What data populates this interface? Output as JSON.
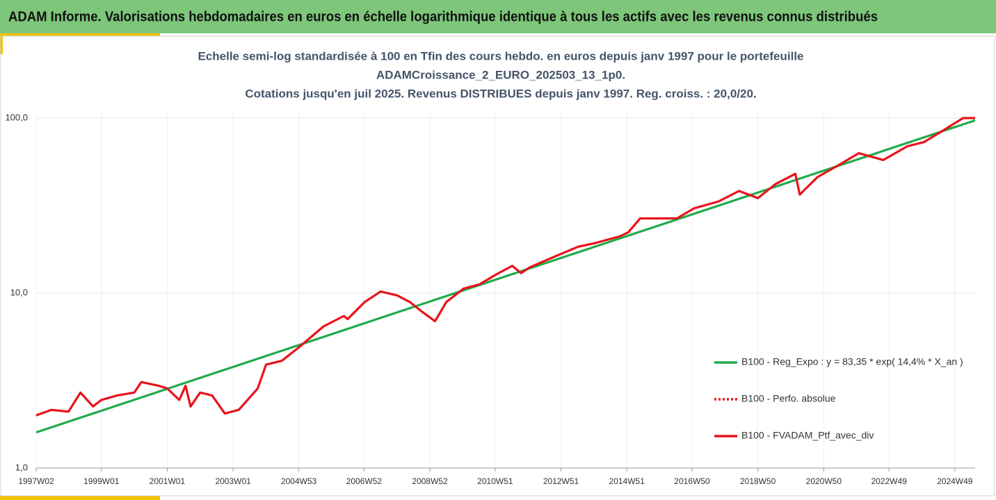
{
  "header": {
    "title": "ADAM Informe. Valorisations hebdomadaires en euros en échelle logarithmique identique à tous les actifs avec les revenus connus distribués"
  },
  "chart_data": {
    "type": "line",
    "title": [
      "Echelle semi-log standardisée à 100 en Tfin des cours hebdo.  en euros depuis janv 1997 pour le portefeuille",
      "ADAMCroissance_2_EURO_202503_13_1p0.",
      "Cotations  jusqu'en juil 2025. Revenus DISTRIBUES depuis janv 1997. Reg. croiss. : 20,0/20."
    ],
    "log_scale": true,
    "grid": true,
    "legend": "right",
    "ylim": [
      1,
      100
    ],
    "yticks": [
      {
        "value": 1,
        "label": "1,0"
      },
      {
        "value": 10,
        "label": "10,0"
      },
      {
        "value": 100,
        "label": "100,0"
      }
    ],
    "xticks": [
      "1997W02",
      "1999W01",
      "2001W01",
      "2003W01",
      "2004W53",
      "2006W52",
      "2008W52",
      "2010W51",
      "2012W51",
      "2014W51",
      "2016W50",
      "2018W50",
      "2020W50",
      "2022W49",
      "2024W49"
    ],
    "series": [
      {
        "name": "B100 - Reg_Expo : y = 83,35 * exp( 14,4% *  X_an )",
        "color": "#1faa4b",
        "style": "solid",
        "x": [
          "1997W02",
          "2025W29"
        ],
        "values": [
          1.6,
          97
        ]
      },
      {
        "name": "B100 - Perfo. absolue",
        "color": "#e8141b",
        "style": "dotted",
        "x": [
          "1997W02",
          "1997W26",
          "1998W01",
          "1998W20",
          "1998W40",
          "1999W01",
          "1999W26",
          "2000W01",
          "2000W12",
          "2000W40",
          "2001W01",
          "2001W20",
          "2001W30",
          "2001W38",
          "2002W01",
          "2002W20",
          "2002W40",
          "2003W10",
          "2003W40",
          "2004W01",
          "2004W26",
          "2005W01",
          "2005W40",
          "2006W20",
          "2006W26",
          "2007W01",
          "2007W26",
          "2007W52",
          "2008W20",
          "2008W40",
          "2009W08",
          "2009W26",
          "2010W01",
          "2010W26",
          "2011W01",
          "2011W26",
          "2011W40",
          "2012W01",
          "2012W40",
          "2013W26",
          "2014W01",
          "2014W40",
          "2015W01",
          "2015W20",
          "2015W40",
          "2016W26",
          "2017W01",
          "2017W40",
          "2018W20",
          "2018W50",
          "2019W26",
          "2020W05",
          "2020W12",
          "2020W40",
          "2021W26",
          "2022W01",
          "2022W40",
          "2023W26",
          "2023W52",
          "2024W26",
          "2025W10",
          "2025W29"
        ],
        "values": [
          2.0,
          2.15,
          2.1,
          2.7,
          2.25,
          2.45,
          2.6,
          2.7,
          3.1,
          2.95,
          2.85,
          2.45,
          2.95,
          2.25,
          2.7,
          2.6,
          2.05,
          2.15,
          2.85,
          3.9,
          4.1,
          4.9,
          6.45,
          7.4,
          7.1,
          8.9,
          10.2,
          9.7,
          8.9,
          7.8,
          6.9,
          8.9,
          10.6,
          11.2,
          12.8,
          14.3,
          13.0,
          14.0,
          16.1,
          18.4,
          19.3,
          21.1,
          22.2,
          26.7,
          26.7,
          26.7,
          30.5,
          33.4,
          38.3,
          34.9,
          42,
          48,
          36.5,
          46,
          55,
          63,
          57.6,
          69,
          72.8,
          83,
          100,
          100
        ]
      },
      {
        "name": "B100 - FVADAM_Ptf_avec_div",
        "color": "#e8141b",
        "style": "solid",
        "x": [
          "1997W02",
          "1997W26",
          "1998W01",
          "1998W20",
          "1998W40",
          "1999W01",
          "1999W26",
          "2000W01",
          "2000W12",
          "2000W40",
          "2001W01",
          "2001W20",
          "2001W30",
          "2001W38",
          "2002W01",
          "2002W20",
          "2002W40",
          "2003W10",
          "2003W40",
          "2004W01",
          "2004W26",
          "2005W01",
          "2005W40",
          "2006W20",
          "2006W26",
          "2007W01",
          "2007W26",
          "2007W52",
          "2008W20",
          "2008W40",
          "2009W08",
          "2009W26",
          "2010W01",
          "2010W26",
          "2011W01",
          "2011W26",
          "2011W40",
          "2012W01",
          "2012W40",
          "2013W26",
          "2014W01",
          "2014W40",
          "2015W01",
          "2015W20",
          "2015W40",
          "2016W26",
          "2017W01",
          "2017W40",
          "2018W20",
          "2018W50",
          "2019W26",
          "2020W05",
          "2020W12",
          "2020W40",
          "2021W26",
          "2022W01",
          "2022W40",
          "2023W26",
          "2023W52",
          "2024W26",
          "2025W10",
          "2025W29"
        ],
        "values": [
          2.0,
          2.15,
          2.1,
          2.7,
          2.25,
          2.45,
          2.6,
          2.7,
          3.1,
          2.95,
          2.85,
          2.45,
          2.95,
          2.25,
          2.7,
          2.6,
          2.05,
          2.15,
          2.85,
          3.9,
          4.1,
          4.9,
          6.45,
          7.4,
          7.1,
          8.9,
          10.2,
          9.7,
          8.9,
          7.8,
          6.9,
          8.9,
          10.6,
          11.2,
          12.8,
          14.3,
          13.0,
          14.0,
          16.1,
          18.4,
          19.3,
          21.1,
          22.2,
          26.7,
          26.7,
          26.7,
          30.5,
          33.4,
          38.3,
          34.9,
          42,
          48,
          36.5,
          46,
          55,
          63,
          57.6,
          69,
          72.8,
          83,
          100,
          100
        ]
      }
    ]
  }
}
